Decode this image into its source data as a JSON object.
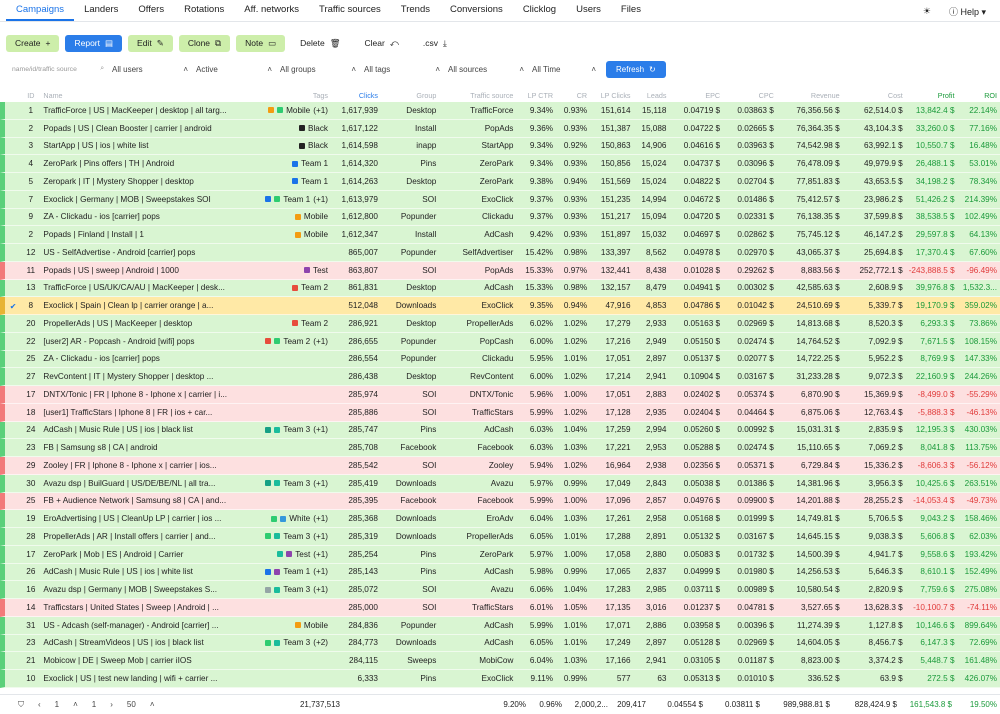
{
  "nav": {
    "tabs": [
      "Campaigns",
      "Landers",
      "Offers",
      "Rotations",
      "Aff. networks",
      "Traffic sources",
      "Trends",
      "Conversions",
      "Clicklog",
      "Users",
      "Files"
    ],
    "help": "Help"
  },
  "toolbar": {
    "create": "Create",
    "report": "Report",
    "edit": "Edit",
    "clone": "Clone",
    "note": "Note",
    "delete": "Delete",
    "clear": "Clear",
    ".csv": ".csv"
  },
  "filters": {
    "search_placeholder": "name/id/traffic source",
    "users": "All users",
    "status": "Active",
    "groups": "All groups",
    "tags": "All tags",
    "sources": "All sources",
    "time": "All Time",
    "refresh": "Refresh"
  },
  "columns": [
    "ID",
    "Name",
    "Tags",
    "Clicks",
    "Group",
    "Traffic source",
    "LP CTR",
    "CR",
    "LP Clicks",
    "Leads",
    "EPC",
    "CPC",
    "Revenue",
    "Cost",
    "Profit",
    "ROI"
  ],
  "rows": [
    {
      "id": "1",
      "name": "TrafficForce | US | MacKeeper | desktop | all targ...",
      "tags": [
        {
          "c": "#2ecc71",
          "c2": "#f39c12"
        }
      ],
      "tag": "Mobile",
      "tagx": "(+1)",
      "clicks": "1,617,939",
      "group": "Desktop",
      "src": "TrafficForce",
      "lpctr": "9.34%",
      "cr": "0.93%",
      "lp": "151,614",
      "leads": "15,118",
      "epc": "0.04719 $",
      "cpc": "0.03863 $",
      "rev": "76,356.56 $",
      "cost": "62,514.0 $",
      "profit": "13,842.4 $",
      "roi": "22.14%",
      "cls": "green"
    },
    {
      "id": "2",
      "name": "Popads | US | Clean Booster | carrier | android",
      "tags": [
        {
          "c": "#222"
        }
      ],
      "tag": "Black",
      "tagx": "",
      "clicks": "1,617,122",
      "group": "Install",
      "src": "PopAds",
      "lpctr": "9.36%",
      "cr": "0.93%",
      "lp": "151,387",
      "leads": "15,088",
      "epc": "0.04722 $",
      "cpc": "0.02665 $",
      "rev": "76,364.35 $",
      "cost": "43,104.3 $",
      "profit": "33,260.0 $",
      "roi": "77.16%",
      "cls": "green"
    },
    {
      "id": "3",
      "name": "StartApp | US | ios | white list",
      "tags": [
        {
          "c": "#222"
        }
      ],
      "tag": "Black",
      "tagx": "",
      "clicks": "1,614,598",
      "group": "inapp",
      "src": "StartApp",
      "lpctr": "9.34%",
      "cr": "0.92%",
      "lp": "150,863",
      "leads": "14,906",
      "epc": "0.04616 $",
      "cpc": "0.03963 $",
      "rev": "74,542.98 $",
      "cost": "63,992.1 $",
      "profit": "10,550.7 $",
      "roi": "16.48%",
      "cls": "green"
    },
    {
      "id": "4",
      "name": "ZeroPark | Pins offers | TH | Android",
      "tags": [
        {
          "c": "#1a73e8"
        }
      ],
      "tag": "Team 1",
      "tagx": "",
      "clicks": "1,614,320",
      "group": "Pins",
      "src": "ZeroPark",
      "lpctr": "9.34%",
      "cr": "0.93%",
      "lp": "150,856",
      "leads": "15,024",
      "epc": "0.04737 $",
      "cpc": "0.03096 $",
      "rev": "76,478.09 $",
      "cost": "49,979.9 $",
      "profit": "26,488.1 $",
      "roi": "53.01%",
      "cls": "green"
    },
    {
      "id": "5",
      "name": "Zeropark | IT | Mystery Shopper | desktop",
      "tags": [
        {
          "c": "#1a73e8"
        }
      ],
      "tag": "Team 1",
      "tagx": "",
      "clicks": "1,614,263",
      "group": "Desktop",
      "src": "ZeroPark",
      "lpctr": "9.38%",
      "cr": "0.94%",
      "lp": "151,569",
      "leads": "15,024",
      "epc": "0.04822 $",
      "cpc": "0.02704 $",
      "rev": "77,851.83 $",
      "cost": "43,653.5 $",
      "profit": "34,198.2 $",
      "roi": "78.34%",
      "cls": "green"
    },
    {
      "id": "7",
      "name": "Exoclick | Germany | MOB | Sweepstakes SOI",
      "tags": [
        {
          "c": "#2ecc71",
          "c2": "#1a73e8"
        }
      ],
      "tag": "Team 1",
      "tagx": "(+1)",
      "clicks": "1,613,979",
      "group": "SOI",
      "src": "ExoClick",
      "lpctr": "9.37%",
      "cr": "0.93%",
      "lp": "151,235",
      "leads": "14,994",
      "epc": "0.04672 $",
      "cpc": "0.01486 $",
      "rev": "75,412.57 $",
      "cost": "23,986.2 $",
      "profit": "51,426.2 $",
      "roi": "214.39%",
      "cls": "green"
    },
    {
      "id": "9",
      "name": "ZA - Clickadu - ios [carrier] pops",
      "tags": [
        {
          "c": "#f39c12"
        }
      ],
      "tag": "Mobile",
      "tagx": "",
      "clicks": "1,612,800",
      "group": "Popunder",
      "src": "Clickadu",
      "lpctr": "9.37%",
      "cr": "0.93%",
      "lp": "151,217",
      "leads": "15,094",
      "epc": "0.04720 $",
      "cpc": "0.02331 $",
      "rev": "76,138.35 $",
      "cost": "37,599.8 $",
      "profit": "38,538.5 $",
      "roi": "102.49%",
      "cls": "green"
    },
    {
      "id": "2",
      "name": "Popads | Finland | Install | 1",
      "tags": [
        {
          "c": "#f39c12"
        }
      ],
      "tag": "Mobile",
      "tagx": "",
      "clicks": "1,612,347",
      "group": "Install",
      "src": "AdCash",
      "lpctr": "9.42%",
      "cr": "0.93%",
      "lp": "151,897",
      "leads": "15,032",
      "epc": "0.04697 $",
      "cpc": "0.02862 $",
      "rev": "75,745.12 $",
      "cost": "46,147.2 $",
      "profit": "29,597.8 $",
      "roi": "64.13%",
      "cls": "green"
    },
    {
      "id": "12",
      "name": "US - SelfAdvertise - Android [carrier] pops",
      "tags": [],
      "tag": "",
      "tagx": "",
      "clicks": "865,007",
      "group": "Popunder",
      "src": "SelfAdvertiser",
      "lpctr": "15.42%",
      "cr": "0.98%",
      "lp": "133,397",
      "leads": "8,562",
      "epc": "0.04978 $",
      "cpc": "0.02970 $",
      "rev": "43,065.37 $",
      "cost": "25,694.8 $",
      "profit": "17,370.4 $",
      "roi": "67.60%",
      "cls": "green"
    },
    {
      "id": "11",
      "name": "Popads | US | sweep | Android | 1000",
      "tags": [
        {
          "c": "#8e44ad"
        }
      ],
      "tag": "Test",
      "tagx": "",
      "clicks": "863,807",
      "group": "SOI",
      "src": "PopAds",
      "lpctr": "15.33%",
      "cr": "0.97%",
      "lp": "132,441",
      "leads": "8,438",
      "epc": "0.01028 $",
      "cpc": "0.29262 $",
      "rev": "8,883.56 $",
      "cost": "252,772.1 $",
      "profit": "-243,888.5 $",
      "roi": "-96.49%",
      "cls": "red"
    },
    {
      "id": "13",
      "name": "TrafficForce | US/UK/CA/AU | MacKeeper | desk...",
      "tags": [
        {
          "c": "#e74c3c"
        }
      ],
      "tag": "Team 2",
      "tagx": "",
      "clicks": "861,831",
      "group": "Desktop",
      "src": "AdCash",
      "lpctr": "15.33%",
      "cr": "0.98%",
      "lp": "132,157",
      "leads": "8,479",
      "epc": "0.04941 $",
      "cpc": "0.00302 $",
      "rev": "42,585.63 $",
      "cost": "2,608.9 $",
      "profit": "39,976.8 $",
      "roi": "1,532.3...",
      "cls": "green"
    },
    {
      "id": "8",
      "name": "Exoclick | Spain | Clean lp | carrier orange | a...",
      "tags": [],
      "tag": "",
      "tagx": "",
      "clicks": "512,048",
      "group": "Downloads",
      "src": "ExoClick",
      "lpctr": "9.35%",
      "cr": "0.94%",
      "lp": "47,916",
      "leads": "4,853",
      "epc": "0.04786 $",
      "cpc": "0.01042 $",
      "rev": "24,510.69 $",
      "cost": "5,339.7 $",
      "profit": "19,170.9 $",
      "roi": "359.02%",
      "cls": "yellow",
      "chk": "✔"
    },
    {
      "id": "20",
      "name": "PropellerAds | US | MacKeeper | desktop",
      "tags": [
        {
          "c": "#e74c3c"
        }
      ],
      "tag": "Team 2",
      "tagx": "",
      "clicks": "286,921",
      "group": "Desktop",
      "src": "PropellerAds",
      "lpctr": "6.02%",
      "cr": "1.02%",
      "lp": "17,279",
      "leads": "2,933",
      "epc": "0.05163 $",
      "cpc": "0.02969 $",
      "rev": "14,813.68 $",
      "cost": "8,520.3 $",
      "profit": "6,293.3 $",
      "roi": "73.86%",
      "cls": "green"
    },
    {
      "id": "22",
      "name": "[user2] AR - Popcash - Android [wifi] pops",
      "tags": [
        {
          "c": "#2ecc71",
          "c2": "#e74c3c"
        }
      ],
      "tag": "Team 2",
      "tagx": "(+1)",
      "clicks": "286,655",
      "group": "Popunder",
      "src": "PopCash",
      "lpctr": "6.00%",
      "cr": "1.02%",
      "lp": "17,216",
      "leads": "2,949",
      "epc": "0.05150 $",
      "cpc": "0.02474 $",
      "rev": "14,764.52 $",
      "cost": "7,092.9 $",
      "profit": "7,671.5 $",
      "roi": "108.15%",
      "cls": "green"
    },
    {
      "id": "25",
      "name": "ZA - Clickadu - ios [carrier] pops",
      "tags": [],
      "tag": "",
      "tagx": "",
      "clicks": "286,554",
      "group": "Popunder",
      "src": "Clickadu",
      "lpctr": "5.95%",
      "cr": "1.01%",
      "lp": "17,051",
      "leads": "2,897",
      "epc": "0.05137 $",
      "cpc": "0.02077 $",
      "rev": "14,722.25 $",
      "cost": "5,952.2 $",
      "profit": "8,769.9 $",
      "roi": "147.33%",
      "cls": "green"
    },
    {
      "id": "27",
      "name": "RevContent | IT | Mystery Shopper | desktop ...",
      "tags": [],
      "tag": "",
      "tagx": "",
      "clicks": "286,438",
      "group": "Desktop",
      "src": "RevContent",
      "lpctr": "6.00%",
      "cr": "1.02%",
      "lp": "17,214",
      "leads": "2,941",
      "epc": "0.10904 $",
      "cpc": "0.03167 $",
      "rev": "31,233.28 $",
      "cost": "9,072.3 $",
      "profit": "22,160.9 $",
      "roi": "244.26%",
      "cls": "green"
    },
    {
      "id": "17",
      "name": "DNTX/Tonic | FR | Iphone 8 - Iphone x | carrier | i...",
      "tags": [],
      "tag": "",
      "tagx": "",
      "clicks": "285,974",
      "group": "SOI",
      "src": "DNTX/Tonic",
      "lpctr": "5.96%",
      "cr": "1.00%",
      "lp": "17,051",
      "leads": "2,883",
      "epc": "0.02402 $",
      "cpc": "0.05374 $",
      "rev": "6,870.90 $",
      "cost": "15,369.9 $",
      "profit": "-8,499.0 $",
      "roi": "-55.29%",
      "cls": "red"
    },
    {
      "id": "18",
      "name": "[user1] TrafficStars | Iphone 8 | FR | ios + car...",
      "tags": [],
      "tag": "",
      "tagx": "",
      "clicks": "285,886",
      "group": "SOI",
      "src": "TrafficStars",
      "lpctr": "5.99%",
      "cr": "1.02%",
      "lp": "17,128",
      "leads": "2,935",
      "epc": "0.02404 $",
      "cpc": "0.04464 $",
      "rev": "6,875.06 $",
      "cost": "12,763.4 $",
      "profit": "-5,888.3 $",
      "roi": "-46.13%",
      "cls": "red"
    },
    {
      "id": "24",
      "name": "AdCash | Music Rule | US | ios | black list",
      "tags": [
        {
          "c": "#1abc9c",
          "c2": "#16a085"
        }
      ],
      "tag": "Team 3",
      "tagx": "(+1)",
      "clicks": "285,747",
      "group": "Pins",
      "src": "AdCash",
      "lpctr": "6.03%",
      "cr": "1.04%",
      "lp": "17,259",
      "leads": "2,994",
      "epc": "0.05260 $",
      "cpc": "0.00992 $",
      "rev": "15,031.31 $",
      "cost": "2,835.9 $",
      "profit": "12,195.3 $",
      "roi": "430.03%",
      "cls": "green"
    },
    {
      "id": "23",
      "name": "FB | Samsung s8 | CA | android",
      "tags": [],
      "tag": "",
      "tagx": "",
      "clicks": "285,708",
      "group": "Facebook",
      "src": "Facebook",
      "lpctr": "6.03%",
      "cr": "1.03%",
      "lp": "17,221",
      "leads": "2,953",
      "epc": "0.05288 $",
      "cpc": "0.02474 $",
      "rev": "15,110.65 $",
      "cost": "7,069.2 $",
      "profit": "8,041.8 $",
      "roi": "113.75%",
      "cls": "green"
    },
    {
      "id": "29",
      "name": "Zooley | FR | Iphone 8 - Iphone x | carrier | ios...",
      "tags": [],
      "tag": "",
      "tagx": "",
      "clicks": "285,542",
      "group": "SOI",
      "src": "Zooley",
      "lpctr": "5.94%",
      "cr": "1.02%",
      "lp": "16,964",
      "leads": "2,938",
      "epc": "0.02356 $",
      "cpc": "0.05371 $",
      "rev": "6,729.84 $",
      "cost": "15,336.2 $",
      "profit": "-8,606.3 $",
      "roi": "-56.12%",
      "cls": "red"
    },
    {
      "id": "30",
      "name": "Avazu dsp | BuilGuard | US/DE/BE/NL | all tra...",
      "tags": [
        {
          "c": "#1abc9c",
          "c2": "#16a085"
        }
      ],
      "tag": "Team 3",
      "tagx": "(+1)",
      "clicks": "285,419",
      "group": "Downloads",
      "src": "Avazu",
      "lpctr": "5.97%",
      "cr": "0.99%",
      "lp": "17,049",
      "leads": "2,843",
      "epc": "0.05038 $",
      "cpc": "0.01386 $",
      "rev": "14,381.96 $",
      "cost": "3,956.3 $",
      "profit": "10,425.6 $",
      "roi": "263.51%",
      "cls": "green"
    },
    {
      "id": "25",
      "name": "FB + Audience Network | Samsung s8 | CA | and...",
      "tags": [],
      "tag": "",
      "tagx": "",
      "clicks": "285,395",
      "group": "Facebook",
      "src": "Facebook",
      "lpctr": "5.99%",
      "cr": "1.00%",
      "lp": "17,096",
      "leads": "2,857",
      "epc": "0.04976 $",
      "cpc": "0.09900 $",
      "rev": "14,201.88 $",
      "cost": "28,255.2 $",
      "profit": "-14,053.4 $",
      "roi": "-49.73%",
      "cls": "red"
    },
    {
      "id": "19",
      "name": "EroAdvertising | US | CleanUp LP | carrier | ios ...",
      "tags": [
        {
          "c": "#3498db",
          "c2": "#2ecc71"
        }
      ],
      "tag": "White",
      "tagx": "(+1)",
      "clicks": "285,368",
      "group": "Downloads",
      "src": "EroAdv",
      "lpctr": "6.04%",
      "cr": "1.03%",
      "lp": "17,261",
      "leads": "2,958",
      "epc": "0.05168 $",
      "cpc": "0.01999 $",
      "rev": "14,749.81 $",
      "cost": "5,706.5 $",
      "profit": "9,043.2 $",
      "roi": "158.46%",
      "cls": "green"
    },
    {
      "id": "28",
      "name": "PropellerAds | AR | Install offers | carrier | and...",
      "tags": [
        {
          "c": "#1abc9c",
          "c2": "#2ecc71"
        }
      ],
      "tag": "Team 3",
      "tagx": "(+1)",
      "clicks": "285,319",
      "group": "Downloads",
      "src": "PropellerAds",
      "lpctr": "6.05%",
      "cr": "1.01%",
      "lp": "17,288",
      "leads": "2,891",
      "epc": "0.05132 $",
      "cpc": "0.03167 $",
      "rev": "14,645.15 $",
      "cost": "9,038.3 $",
      "profit": "5,606.8 $",
      "roi": "62.03%",
      "cls": "green"
    },
    {
      "id": "17",
      "name": "ZeroPark | Mob | ES | Android | Carrier",
      "tags": [
        {
          "c": "#8e44ad",
          "c2": "#1abc9c"
        }
      ],
      "tag": "Test",
      "tagx": "(+1)",
      "clicks": "285,254",
      "group": "Pins",
      "src": "ZeroPark",
      "lpctr": "5.97%",
      "cr": "1.00%",
      "lp": "17,058",
      "leads": "2,880",
      "epc": "0.05083 $",
      "cpc": "0.01732 $",
      "rev": "14,500.39 $",
      "cost": "4,941.7 $",
      "profit": "9,558.6 $",
      "roi": "193.42%",
      "cls": "green"
    },
    {
      "id": "26",
      "name": "AdCash | Music Rule | US | ios | white list",
      "tags": [
        {
          "c": "#8e44ad",
          "c2": "#1a73e8"
        }
      ],
      "tag": "Team 1",
      "tagx": "(+1)",
      "clicks": "285,143",
      "group": "Pins",
      "src": "AdCash",
      "lpctr": "5.98%",
      "cr": "0.99%",
      "lp": "17,065",
      "leads": "2,837",
      "epc": "0.04999 $",
      "cpc": "0.01980 $",
      "rev": "14,256.53 $",
      "cost": "5,646.3 $",
      "profit": "8,610.1 $",
      "roi": "152.49%",
      "cls": "green"
    },
    {
      "id": "16",
      "name": "Avazu dsp | Germany | MOB | Sweepstakes S...",
      "tags": [
        {
          "c": "#1abc9c",
          "c2": "#95a5a6"
        }
      ],
      "tag": "Team 3",
      "tagx": "(+1)",
      "clicks": "285,072",
      "group": "SOI",
      "src": "Avazu",
      "lpctr": "6.06%",
      "cr": "1.04%",
      "lp": "17,283",
      "leads": "2,985",
      "epc": "0.03711 $",
      "cpc": "0.00989 $",
      "rev": "10,580.54 $",
      "cost": "2,820.9 $",
      "profit": "7,759.6 $",
      "roi": "275.08%",
      "cls": "green"
    },
    {
      "id": "14",
      "name": "Trafficstars | United States | Sweep | Android | ...",
      "tags": [],
      "tag": "",
      "tagx": "",
      "clicks": "285,000",
      "group": "SOI",
      "src": "TrafficStars",
      "lpctr": "6.01%",
      "cr": "1.05%",
      "lp": "17,135",
      "leads": "3,016",
      "epc": "0.01237 $",
      "cpc": "0.04781 $",
      "rev": "3,527.65 $",
      "cost": "13,628.3 $",
      "profit": "-10,100.7 $",
      "roi": "-74.11%",
      "cls": "red"
    },
    {
      "id": "31",
      "name": "US - Adcash (self-manager) - Android [carrier] ...",
      "tags": [
        {
          "c": "#f39c12"
        }
      ],
      "tag": "Mobile",
      "tagx": "",
      "clicks": "284,836",
      "group": "Popunder",
      "src": "AdCash",
      "lpctr": "5.99%",
      "cr": "1.01%",
      "lp": "17,071",
      "leads": "2,886",
      "epc": "0.03958 $",
      "cpc": "0.00396 $",
      "rev": "11,274.39 $",
      "cost": "1,127.8 $",
      "profit": "10,146.6 $",
      "roi": "899.64%",
      "cls": "green"
    },
    {
      "id": "23",
      "name": "AdCash | StreamVideos | US | ios | black list",
      "tags": [
        {
          "c": "#1abc9c",
          "c2": "#2ecc71"
        }
      ],
      "tag": "Team 3",
      "tagx": "(+2)",
      "clicks": "284,773",
      "group": "Downloads",
      "src": "AdCash",
      "lpctr": "6.05%",
      "cr": "1.01%",
      "lp": "17,249",
      "leads": "2,897",
      "epc": "0.05128 $",
      "cpc": "0.02969 $",
      "rev": "14,604.05 $",
      "cost": "8,456.7 $",
      "profit": "6,147.3 $",
      "roi": "72.69%",
      "cls": "green"
    },
    {
      "id": "21",
      "name": "Mobicow | DE | Sweep Mob | carrier iIOS",
      "tags": [],
      "tag": "",
      "tagx": "",
      "clicks": "284,115",
      "group": "Sweeps",
      "src": "MobiCow",
      "lpctr": "6.04%",
      "cr": "1.03%",
      "lp": "17,166",
      "leads": "2,941",
      "epc": "0.03105 $",
      "cpc": "0.01187 $",
      "rev": "8,823.00 $",
      "cost": "3,374.2 $",
      "profit": "5,448.7 $",
      "roi": "161.48%",
      "cls": "green"
    },
    {
      "id": "10",
      "name": "Exoclick | US | test new landing | wifi + carrier ...",
      "tags": [],
      "tag": "",
      "tagx": "",
      "clicks": "6,333",
      "group": "Pins",
      "src": "ExoClick",
      "lpctr": "9.11%",
      "cr": "0.99%",
      "lp": "577",
      "leads": "63",
      "epc": "0.05313 $",
      "cpc": "0.01010 $",
      "rev": "336.52 $",
      "cost": "63.9 $",
      "profit": "272.5 $",
      "roi": "426.07%",
      "cls": "green"
    }
  ],
  "footer": {
    "page": "1",
    "page2": "1",
    "per_page": "50",
    "clicks": "21,737,513",
    "lpctr": "9.20%",
    "cr": "0.96%",
    "lp": "2,000,2...",
    "leads": "209,417",
    "epc": "0.04554 $",
    "cpc": "0.03811 $",
    "rev": "989,988.81 $",
    "cost": "828,424.9 $",
    "profit": "161,543.8 $",
    "roi": "19.50%"
  }
}
